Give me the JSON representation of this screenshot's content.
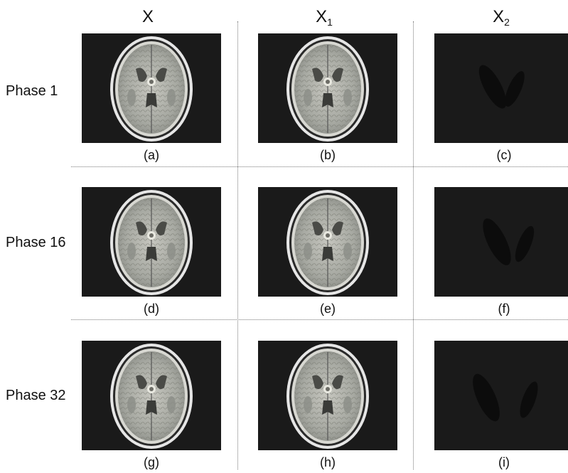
{
  "columns": [
    {
      "main": "X",
      "sub": ""
    },
    {
      "main": "X",
      "sub": "1"
    },
    {
      "main": "X",
      "sub": "2"
    }
  ],
  "rows": [
    {
      "label": "Phase 1",
      "captions": [
        "(a)",
        "(b)",
        "(c)"
      ]
    },
    {
      "label": "Phase 16",
      "captions": [
        "(d)",
        "(e)",
        "(f)"
      ]
    },
    {
      "label": "Phase 32",
      "captions": [
        "(g)",
        "(h)",
        "(i)"
      ]
    }
  ],
  "colors": {
    "panel_background": "#1a1a1a",
    "ellipse_fill": "#0c0c0c"
  }
}
